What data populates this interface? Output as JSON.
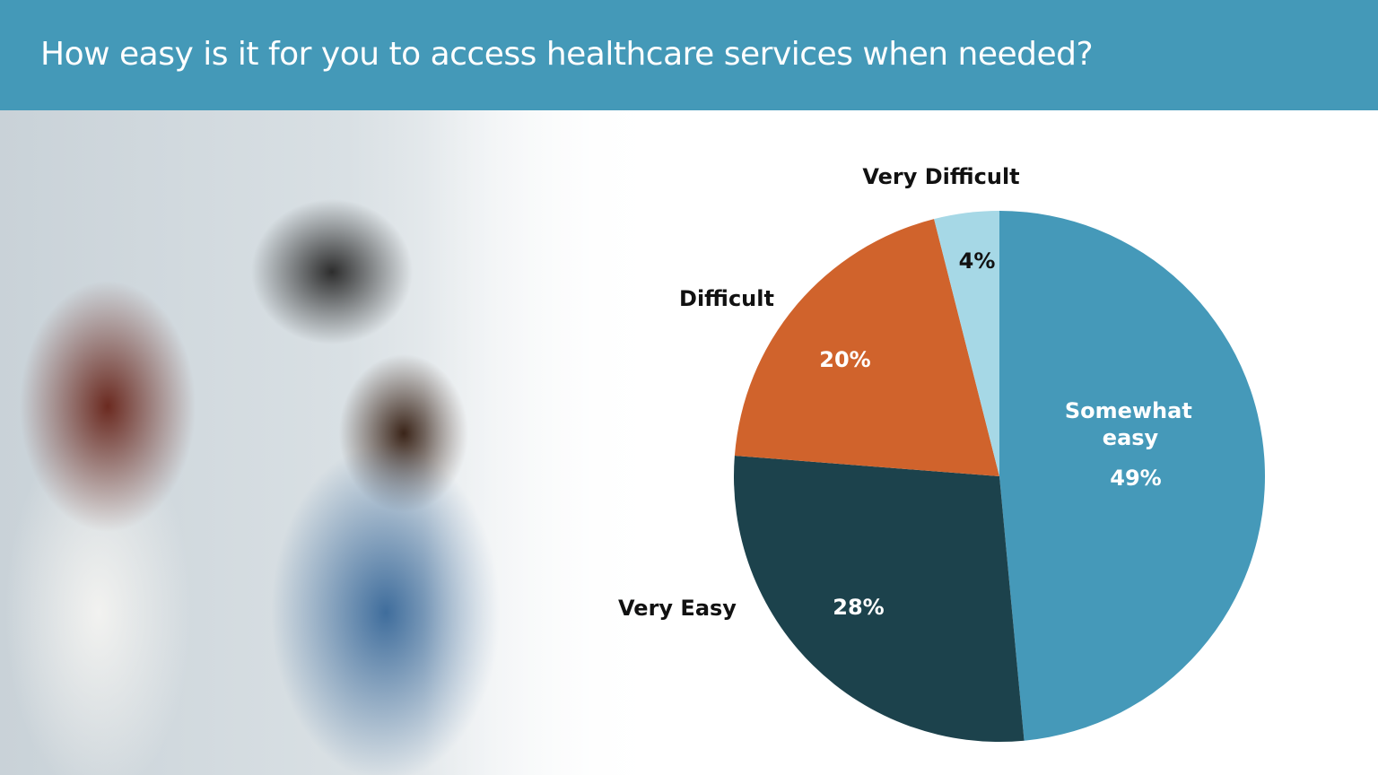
{
  "header": {
    "title": "How easy is it for you to access healthcare services when needed?"
  },
  "photo": {
    "description_icon": "pharmacy-photo"
  },
  "colors": {
    "header": "#4499b8"
  },
  "chart_data": {
    "type": "pie",
    "start": "top",
    "direction": "clockwise",
    "slices": [
      {
        "label": "Somewhat easy",
        "label_lines": [
          "Somewhat",
          "easy"
        ],
        "value": 49,
        "value_label": "49%",
        "color": "#4599b9"
      },
      {
        "label": "Very Easy",
        "value": 28,
        "value_label": "28%",
        "color": "#1c424c"
      },
      {
        "label": "Difficult",
        "value": 20,
        "value_label": "20%",
        "color": "#d0632c"
      },
      {
        "label": "Very Difficult",
        "value": 4,
        "value_label": "4%",
        "color": "#a6d8e6"
      }
    ]
  }
}
